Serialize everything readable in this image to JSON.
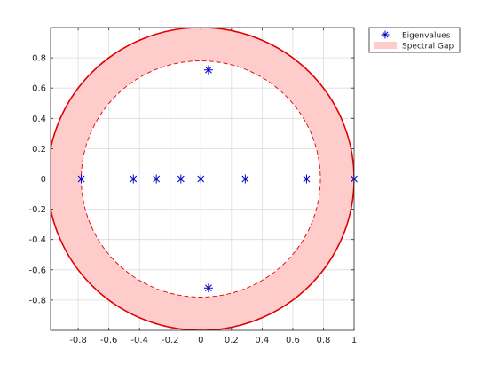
{
  "chart_data": {
    "type": "scatter",
    "title": "",
    "xlabel": "",
    "ylabel": "",
    "xlim": [
      -0.98,
      1.0
    ],
    "ylim": [
      -1.0,
      1.0
    ],
    "grid": true,
    "legend_position": "outside-top-right",
    "x_ticks": [
      -0.8,
      -0.6,
      -0.4,
      -0.2,
      0,
      0.2,
      0.4,
      0.6,
      0.8,
      1
    ],
    "x_tick_labels": [
      "-0.8",
      "-0.6",
      "-0.4",
      "-0.2",
      "0",
      "0.2",
      "0.4",
      "0.6",
      "0.8",
      "1"
    ],
    "y_ticks": [
      -0.8,
      -0.6,
      -0.4,
      -0.2,
      0,
      0.2,
      0.4,
      0.6,
      0.8
    ],
    "y_tick_labels": [
      "-0.8",
      "-0.6",
      "-0.4",
      "-0.2",
      "0",
      "0.2",
      "0.4",
      "0.6",
      "0.8"
    ],
    "series": [
      {
        "name": "Eigenvalues",
        "marker": "asterisk",
        "color": "#0000cc",
        "points": [
          {
            "x": -0.78,
            "y": 0
          },
          {
            "x": -0.44,
            "y": 0
          },
          {
            "x": -0.29,
            "y": 0
          },
          {
            "x": -0.13,
            "y": 0
          },
          {
            "x": 0.0,
            "y": 0
          },
          {
            "x": 0.29,
            "y": 0
          },
          {
            "x": 0.69,
            "y": 0
          },
          {
            "x": 1.0,
            "y": 0
          },
          {
            "x": 0.05,
            "y": 0.72
          },
          {
            "x": 0.05,
            "y": -0.72
          }
        ]
      },
      {
        "name": "Spectral Gap",
        "type": "annulus",
        "fill_color": "#ffcccc",
        "outer_radius": 1.0,
        "inner_radius": 0.78,
        "outer_edge_color": "#e00000",
        "inner_edge_color": "#e00000",
        "inner_edge_style": "dashed"
      }
    ]
  }
}
